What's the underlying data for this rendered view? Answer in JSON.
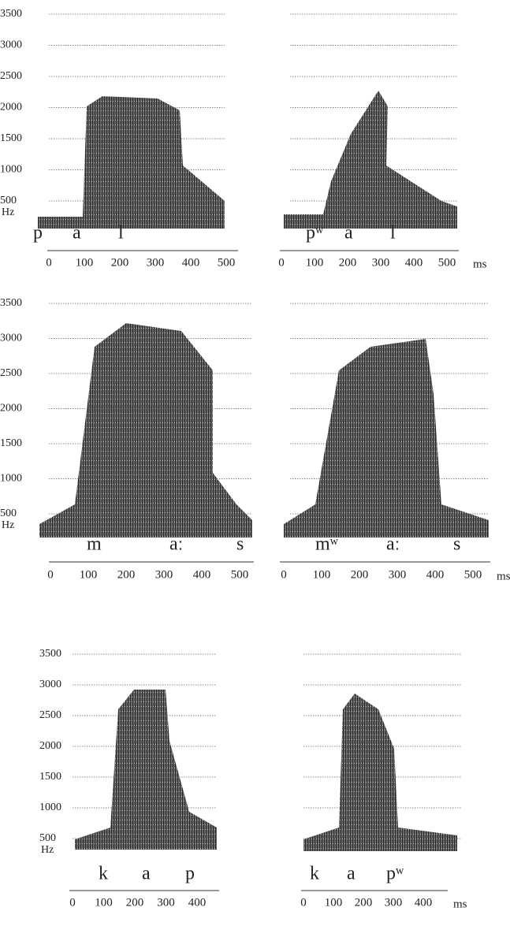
{
  "panels": [
    {
      "y_labels": [
        "3500",
        "3000",
        "2500",
        "2000",
        "1500",
        "1000",
        "500"
      ],
      "y_unit": "Hz",
      "segments": [
        "p",
        "a",
        "l"
      ],
      "x_labels": [
        "0",
        "100",
        "200",
        "300",
        "400",
        "500"
      ]
    },
    {
      "segments": [
        "pʷ",
        "a",
        "l"
      ],
      "x_labels": [
        "0",
        "100",
        "200",
        "300",
        "400",
        "500"
      ],
      "x_unit": "ms"
    },
    {
      "y_labels": [
        "3500",
        "3000",
        "2500",
        "2000",
        "1500",
        "1000",
        "500"
      ],
      "y_unit": "Hz",
      "segments": [
        "m",
        "aː",
        "s"
      ],
      "x_labels": [
        "0",
        "100",
        "200",
        "300",
        "400",
        "500"
      ]
    },
    {
      "segments": [
        "mʷ",
        "aː",
        "s"
      ],
      "x_labels": [
        "0",
        "100",
        "200",
        "300",
        "400",
        "500"
      ],
      "x_unit": "ms"
    },
    {
      "y_labels": [
        "3500",
        "3000",
        "2500",
        "2000",
        "1500",
        "1000",
        "500"
      ],
      "y_unit": "Hz",
      "segments": [
        "k",
        "a",
        "p"
      ],
      "x_labels": [
        "0",
        "100",
        "200",
        "300",
        "400"
      ]
    },
    {
      "segments": [
        "k",
        "a",
        "pʷ"
      ],
      "x_labels": [
        "0",
        "100",
        "200",
        "300",
        "400"
      ],
      "x_unit": "ms"
    }
  ]
}
